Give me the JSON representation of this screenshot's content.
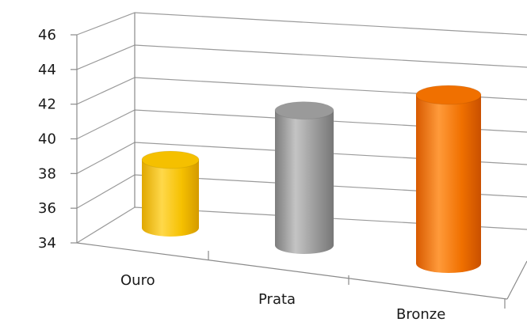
{
  "chart_data": {
    "type": "bar",
    "categories": [
      "Ouro",
      "Prata",
      "Bronze"
    ],
    "values": [
      38,
      42,
      44
    ],
    "colors": [
      "#f5c000",
      "#9a9a9a",
      "#f07000"
    ],
    "ylim": [
      34,
      46
    ],
    "y_ticks": [
      "34",
      "36",
      "38",
      "40",
      "42",
      "44",
      "46"
    ],
    "grid": true,
    "style": "3d-cylinder"
  }
}
